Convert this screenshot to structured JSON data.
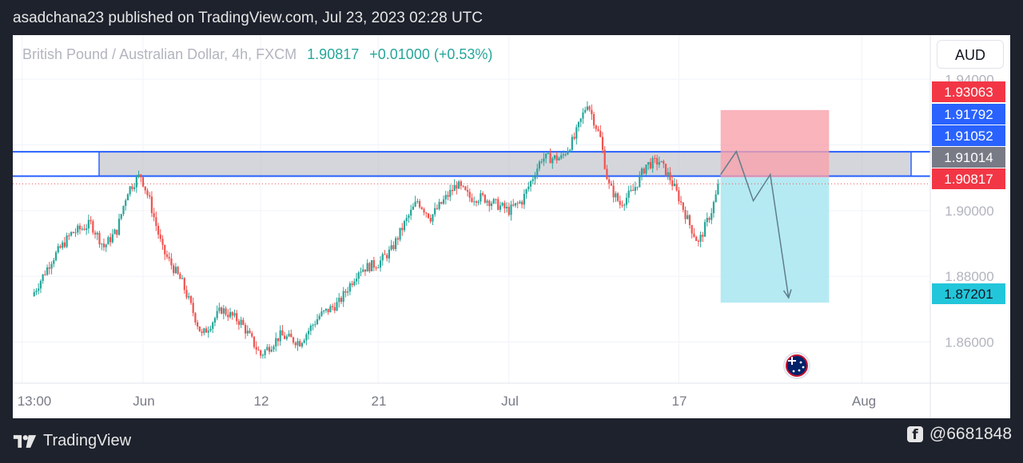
{
  "header": {
    "text": "asadchana23 published on TradingView.com, Jul 23, 2023 02:28 UTC"
  },
  "symbol": {
    "name": "British Pound / Australian Dollar, 4h, FXCM",
    "price": "1.90817",
    "change": "+0.01000 (+0.53%)"
  },
  "currency_button": {
    "label": "AUD"
  },
  "footer": {
    "brand": "TradingView",
    "handle": "@6681848"
  },
  "colors": {
    "up": "#26a69a",
    "down": "#ef5350",
    "zone_fill": "#b2b5be",
    "zone_line": "#2962ff",
    "stop": "#f7a1ab",
    "target": "#a8e6f1",
    "path": "#607d8b"
  },
  "chart_data": {
    "type": "candlestick",
    "ylim": [
      1.8475,
      1.9425
    ],
    "y_ticks": [
      "1.94000",
      "1.90000",
      "1.88000",
      "1.86000"
    ],
    "x_ticks": [
      "13:00",
      "Jun",
      "12",
      "21",
      "Jul",
      "17",
      "Aug"
    ],
    "series_anchors": [
      {
        "day": -8.5,
        "price": 1.874
      },
      {
        "day": -7.0,
        "price": 1.885
      },
      {
        "day": -5.5,
        "price": 1.893
      },
      {
        "day": -4.0,
        "price": 1.896
      },
      {
        "day": -3.0,
        "price": 1.889
      },
      {
        "day": -2.0,
        "price": 1.894
      },
      {
        "day": -1.2,
        "price": 1.906
      },
      {
        "day": -0.2,
        "price": 1.911
      },
      {
        "day": 0.5,
        "price": 1.903
      },
      {
        "day": 1.5,
        "price": 1.888
      },
      {
        "day": 3.0,
        "price": 1.878
      },
      {
        "day": 4.5,
        "price": 1.862
      },
      {
        "day": 6.0,
        "price": 1.87
      },
      {
        "day": 7.5,
        "price": 1.866
      },
      {
        "day": 9.0,
        "price": 1.856
      },
      {
        "day": 10.5,
        "price": 1.862
      },
      {
        "day": 12.0,
        "price": 1.86
      },
      {
        "day": 13.5,
        "price": 1.868
      },
      {
        "day": 15.0,
        "price": 1.872
      },
      {
        "day": 16.5,
        "price": 1.882
      },
      {
        "day": 18.0,
        "price": 1.884
      },
      {
        "day": 19.0,
        "price": 1.888
      },
      {
        "day": 20.0,
        "price": 1.896
      },
      {
        "day": 21.0,
        "price": 1.903
      },
      {
        "day": 22.0,
        "price": 1.898
      },
      {
        "day": 23.2,
        "price": 1.904
      },
      {
        "day": 24.0,
        "price": 1.908
      },
      {
        "day": 25.0,
        "price": 1.904
      },
      {
        "day": 26.0,
        "price": 1.904
      },
      {
        "day": 27.0,
        "price": 1.902
      },
      {
        "day": 28.0,
        "price": 1.9
      },
      {
        "day": 29.0,
        "price": 1.903
      },
      {
        "day": 30.5,
        "price": 1.916
      },
      {
        "day": 32.0,
        "price": 1.916
      },
      {
        "day": 33.0,
        "price": 1.922
      },
      {
        "day": 34.0,
        "price": 1.933
      },
      {
        "day": 35.0,
        "price": 1.922
      },
      {
        "day": 35.6,
        "price": 1.908
      },
      {
        "day": 36.5,
        "price": 1.902
      },
      {
        "day": 37.5,
        "price": 1.906
      },
      {
        "day": 38.5,
        "price": 1.914
      },
      {
        "day": 39.5,
        "price": 1.915
      },
      {
        "day": 40.3,
        "price": 1.91
      },
      {
        "day": 41.0,
        "price": 1.904
      },
      {
        "day": 41.8,
        "price": 1.896
      },
      {
        "day": 42.5,
        "price": 1.89
      },
      {
        "day": 43.5,
        "price": 1.9
      },
      {
        "day": 44.1,
        "price": 1.908
      }
    ],
    "labels": [
      {
        "value": "1.93063",
        "role": "stop-loss"
      },
      {
        "value": "1.91792",
        "role": "zone"
      },
      {
        "value": "1.91052",
        "role": "zone"
      },
      {
        "value": "1.91014",
        "role": "high"
      },
      {
        "value": "1.90817",
        "role": "last"
      },
      {
        "value": "1.87201",
        "role": "take-profit"
      }
    ],
    "resistance_zone": [
      1.91052,
      1.91792
    ],
    "position": {
      "entry": 1.91014,
      "stop": 1.93063,
      "target": 1.87201,
      "start_day": 44.2,
      "end_day": 52.5
    },
    "projection": [
      {
        "day": 44.2,
        "price": 1.911
      },
      {
        "day": 45.4,
        "price": 1.918
      },
      {
        "day": 46.7,
        "price": 1.903
      },
      {
        "day": 48.0,
        "price": 1.911
      },
      {
        "day": 49.4,
        "price": 1.8735
      }
    ]
  }
}
